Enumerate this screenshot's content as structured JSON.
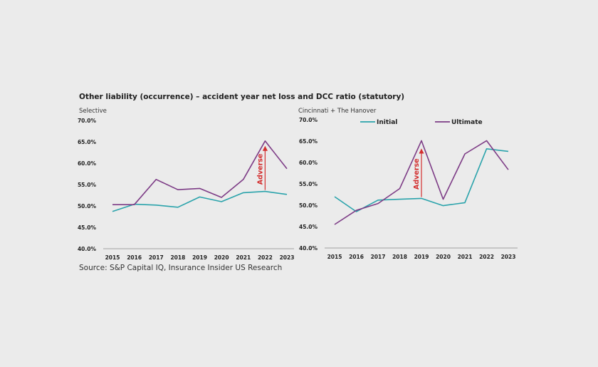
{
  "title": "Other liability (occurrence) – accident year net loss and DCC ratio (statutory)",
  "source": "Source: S&P Capital IQ, Insurance Insider US Research",
  "colors": {
    "initial": "#2aa3ab",
    "ultimate": "#7d3c86",
    "axis": "#888888",
    "arrow": "#d32f2f"
  },
  "legend": {
    "initial": "Initial",
    "ultimate": "Ultimate"
  },
  "chart_data": [
    {
      "type": "line",
      "subtitle": "Selective",
      "categories": [
        "2015",
        "2016",
        "2017",
        "2018",
        "2019",
        "2020",
        "2021",
        "2022",
        "2023"
      ],
      "ylim": [
        40,
        70
      ],
      "yticks": [
        "40.0%",
        "45.0%",
        "50.0%",
        "55.0%",
        "60.0%",
        "65.0%",
        "70.0%"
      ],
      "series": [
        {
          "name": "Initial",
          "values": [
            48.7,
            50.4,
            50.2,
            49.7,
            52.1,
            51.0,
            53.1,
            53.4,
            52.7
          ]
        },
        {
          "name": "Ultimate",
          "values": [
            50.3,
            50.3,
            56.2,
            53.8,
            54.1,
            52.0,
            56.2,
            65.2,
            58.7
          ]
        }
      ],
      "annotation": {
        "text": "Adverse",
        "category": "2022",
        "from": 53.4,
        "to": 63.8
      }
    },
    {
      "type": "line",
      "subtitle": "Cincinnati + The Hanover",
      "categories": [
        "2015",
        "2016",
        "2017",
        "2018",
        "2019",
        "2020",
        "2021",
        "2022",
        "2023"
      ],
      "ylim": [
        40,
        70
      ],
      "yticks": [
        "40.0%",
        "45.0%",
        "50.0%",
        "55.0%",
        "60.0%",
        "65.0%",
        "70.0%"
      ],
      "series": [
        {
          "name": "Initial",
          "values": [
            52.0,
            48.5,
            51.2,
            51.4,
            51.6,
            49.9,
            50.6,
            63.2,
            62.6
          ]
        },
        {
          "name": "Ultimate",
          "values": [
            45.5,
            48.8,
            50.4,
            53.9,
            65.1,
            51.4,
            62.0,
            65.1,
            58.3
          ]
        }
      ],
      "annotation": {
        "text": "Adverse",
        "category": "2019",
        "from": 51.6,
        "to": 63.0
      }
    }
  ]
}
